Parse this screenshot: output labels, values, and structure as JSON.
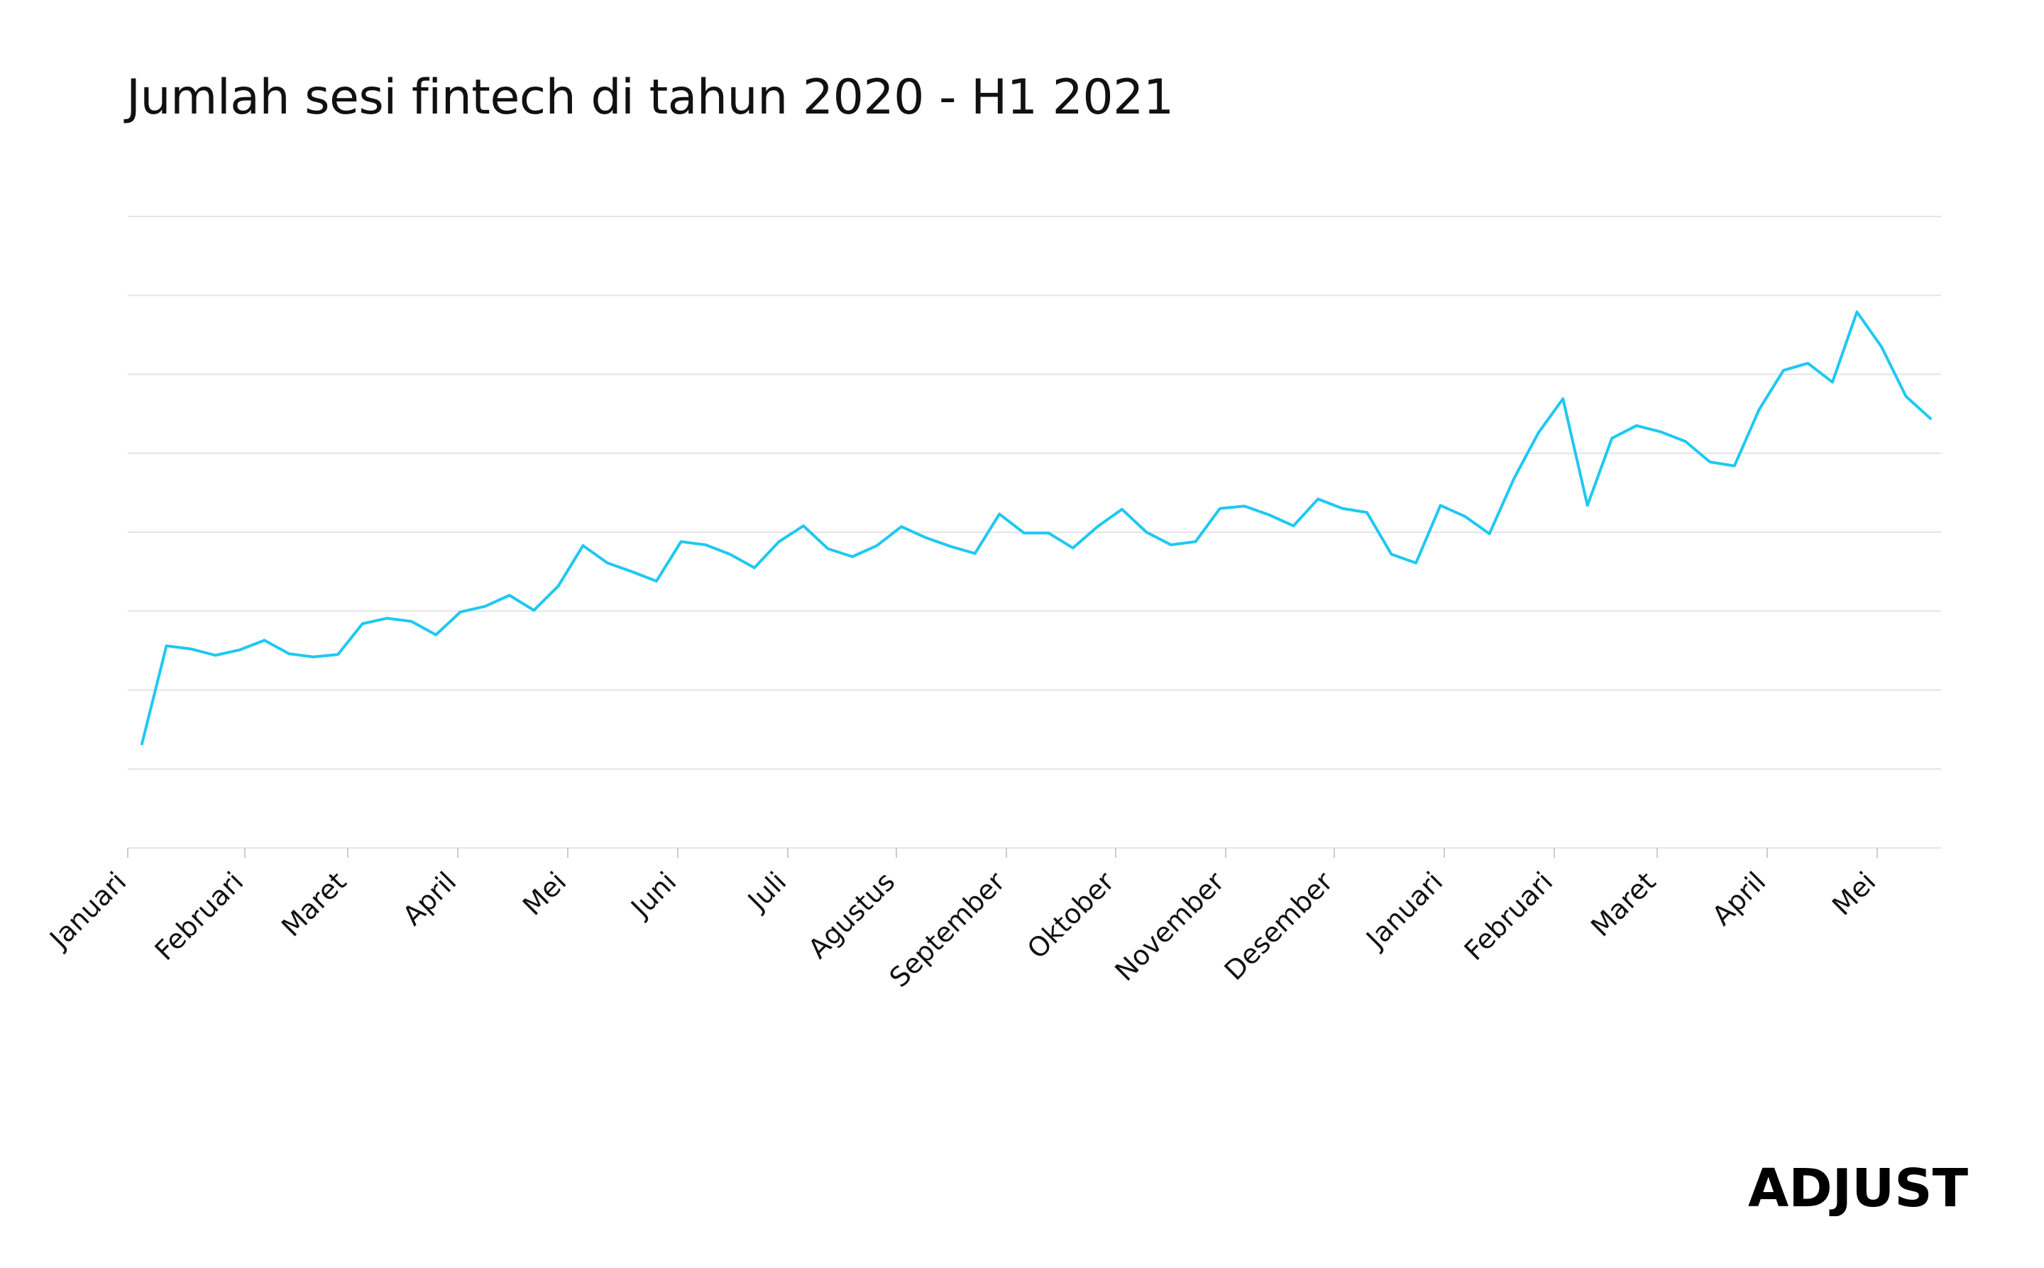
{
  "colors": {
    "line": "#1fc8f2",
    "grid": "#e4e4e4",
    "axis": "#cccccc",
    "text": "#111111"
  },
  "brand": {
    "logo_text": "ADJUST"
  },
  "chart_data": {
    "type": "line",
    "title": "Jumlah sesi fintech di tahun 2020 - H1 2021",
    "xlabel": "",
    "ylabel": "",
    "y_tick_labels_shown": false,
    "ylim": [
      0,
      8
    ],
    "grid": true,
    "legend": "none",
    "x_tick_labels": [
      "Januari",
      "Februari",
      "Maret",
      "April",
      "Mei",
      "Juni",
      "Juli",
      "Agustus",
      "September",
      "Oktober",
      "November",
      "Desember",
      "Januari",
      "Februari",
      "Maret",
      "April",
      "Mei"
    ],
    "series": [
      {
        "values": [
          1.32,
          2.56,
          2.52,
          2.44,
          2.51,
          2.63,
          2.46,
          2.42,
          2.45,
          2.84,
          2.91,
          2.87,
          2.7,
          2.99,
          3.06,
          3.2,
          3.01,
          3.32,
          3.83,
          3.61,
          3.5,
          3.38,
          3.88,
          3.84,
          3.72,
          3.55,
          3.88,
          4.08,
          3.79,
          3.69,
          3.83,
          4.07,
          3.93,
          3.82,
          3.73,
          4.23,
          3.99,
          3.99,
          3.8,
          4.07,
          4.29,
          4.0,
          3.84,
          3.88,
          4.3,
          4.33,
          4.22,
          4.08,
          4.42,
          4.3,
          4.25,
          3.72,
          3.61,
          4.34,
          4.2,
          3.98,
          4.68,
          5.26,
          5.69,
          4.34,
          5.19,
          5.35,
          5.27,
          5.15,
          4.89,
          4.84,
          5.55,
          6.05,
          6.14,
          5.9,
          6.79,
          6.35,
          5.72,
          5.44
        ]
      }
    ]
  }
}
